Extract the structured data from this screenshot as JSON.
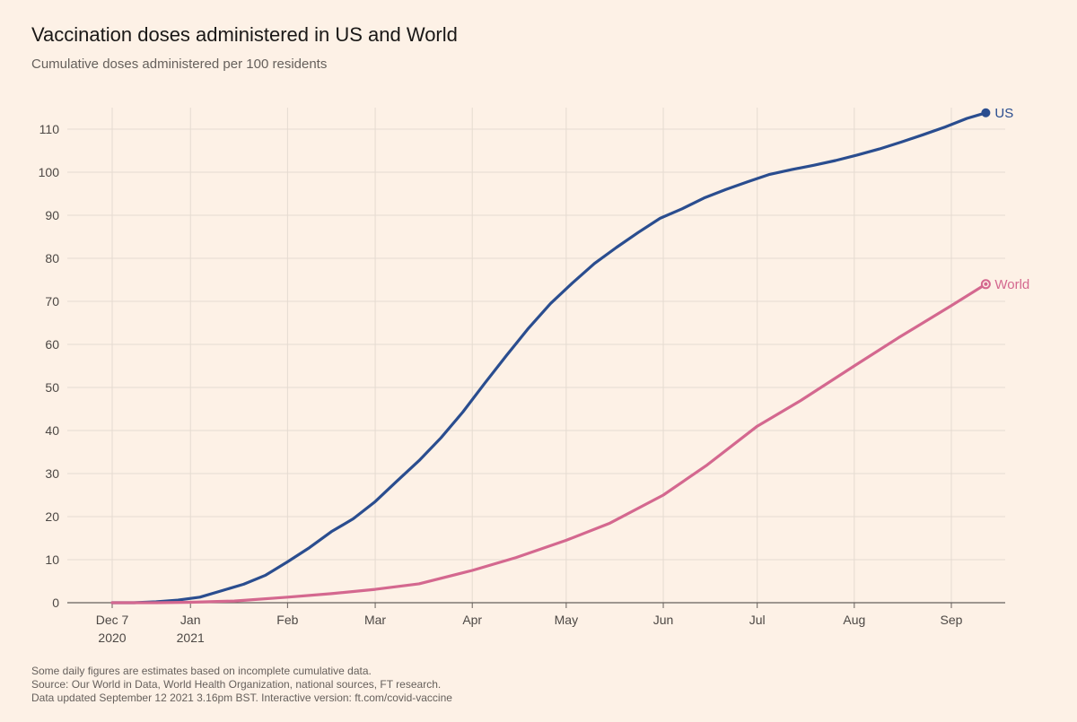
{
  "header": {
    "title": "Vaccination doses administered in US and World",
    "subtitle": "Cumulative doses administered per 100 residents"
  },
  "footer": {
    "note": "Some daily figures are estimates based on incomplete cumulative data.",
    "source": "Source: Our World in Data, World Health Organization, national sources, FT research.",
    "updated": "Data updated September 12 2021 3.16pm BST. Interactive version: ft.com/covid-vaccine"
  },
  "colors": {
    "us": "#2a4d8f",
    "world": "#d4688f",
    "grid": "#e5dbd1",
    "axis": "#66605c",
    "background": "#fdf1e6"
  },
  "chart_data": {
    "type": "line",
    "title": "Vaccination doses administered in US and World",
    "subtitle": "Cumulative doses administered per 100 residents",
    "xlabel": "",
    "ylabel": "",
    "x_range": [
      "2020-12-07",
      "2021-09-12"
    ],
    "ylim": [
      0,
      115
    ],
    "y_ticks": [
      0,
      10,
      20,
      30,
      40,
      50,
      60,
      70,
      80,
      90,
      100,
      110
    ],
    "x_ticks": [
      {
        "date": "2020-12-07",
        "label": "Dec 7",
        "sublabel": "2020"
      },
      {
        "date": "2021-01-01",
        "label": "Jan",
        "sublabel": "2021"
      },
      {
        "date": "2021-02-01",
        "label": "Feb",
        "sublabel": ""
      },
      {
        "date": "2021-03-01",
        "label": "Mar",
        "sublabel": ""
      },
      {
        "date": "2021-04-01",
        "label": "Apr",
        "sublabel": ""
      },
      {
        "date": "2021-05-01",
        "label": "May",
        "sublabel": ""
      },
      {
        "date": "2021-06-01",
        "label": "Jun",
        "sublabel": ""
      },
      {
        "date": "2021-07-01",
        "label": "Jul",
        "sublabel": ""
      },
      {
        "date": "2021-08-01",
        "label": "Aug",
        "sublabel": ""
      },
      {
        "date": "2021-09-01",
        "label": "Sep",
        "sublabel": ""
      }
    ],
    "grid": true,
    "series": [
      {
        "name": "US",
        "color": "#2a4d8f",
        "points": [
          [
            "2020-12-07",
            0
          ],
          [
            "2020-12-14",
            0
          ],
          [
            "2020-12-21",
            0.2
          ],
          [
            "2020-12-28",
            0.6
          ],
          [
            "2021-01-04",
            1.3
          ],
          [
            "2021-01-11",
            2.8
          ],
          [
            "2021-01-18",
            4.3
          ],
          [
            "2021-01-25",
            6.4
          ],
          [
            "2021-02-01",
            9.5
          ],
          [
            "2021-02-08",
            12.8
          ],
          [
            "2021-02-15",
            16.5
          ],
          [
            "2021-02-22",
            19.5
          ],
          [
            "2021-03-01",
            23.5
          ],
          [
            "2021-03-08",
            28.3
          ],
          [
            "2021-03-15",
            33
          ],
          [
            "2021-03-22",
            38.3
          ],
          [
            "2021-03-29",
            44.3
          ],
          [
            "2021-04-05",
            51
          ],
          [
            "2021-04-12",
            57.5
          ],
          [
            "2021-04-19",
            63.8
          ],
          [
            "2021-04-26",
            69.5
          ],
          [
            "2021-05-03",
            74.3
          ],
          [
            "2021-05-10",
            78.8
          ],
          [
            "2021-05-17",
            82.5
          ],
          [
            "2021-05-24",
            86
          ],
          [
            "2021-05-31",
            89.3
          ],
          [
            "2021-06-07",
            91.5
          ],
          [
            "2021-06-14",
            94
          ],
          [
            "2021-06-21",
            96
          ],
          [
            "2021-06-28",
            97.8
          ],
          [
            "2021-07-05",
            99.5
          ],
          [
            "2021-07-12",
            100.6
          ],
          [
            "2021-07-19",
            101.6
          ],
          [
            "2021-07-26",
            102.7
          ],
          [
            "2021-08-02",
            104
          ],
          [
            "2021-08-09",
            105.4
          ],
          [
            "2021-08-16",
            107
          ],
          [
            "2021-08-23",
            108.7
          ],
          [
            "2021-08-30",
            110.5
          ],
          [
            "2021-09-06",
            112.5
          ],
          [
            "2021-09-12",
            113.8
          ]
        ]
      },
      {
        "name": "World",
        "color": "#d4688f",
        "points": [
          [
            "2020-12-07",
            0
          ],
          [
            "2020-12-21",
            0
          ],
          [
            "2021-01-01",
            0.1
          ],
          [
            "2021-01-15",
            0.4
          ],
          [
            "2021-02-01",
            1.3
          ],
          [
            "2021-02-15",
            2.1
          ],
          [
            "2021-03-01",
            3.1
          ],
          [
            "2021-03-15",
            4.4
          ],
          [
            "2021-04-01",
            7.5
          ],
          [
            "2021-04-15",
            10.5
          ],
          [
            "2021-05-01",
            14.5
          ],
          [
            "2021-05-15",
            18.5
          ],
          [
            "2021-06-01",
            25
          ],
          [
            "2021-06-15",
            32
          ],
          [
            "2021-07-01",
            41
          ],
          [
            "2021-07-15",
            47
          ],
          [
            "2021-08-01",
            55
          ],
          [
            "2021-08-15",
            61.5
          ],
          [
            "2021-09-01",
            69
          ],
          [
            "2021-09-12",
            74
          ]
        ]
      }
    ],
    "end_labels": [
      "US",
      "World"
    ]
  }
}
